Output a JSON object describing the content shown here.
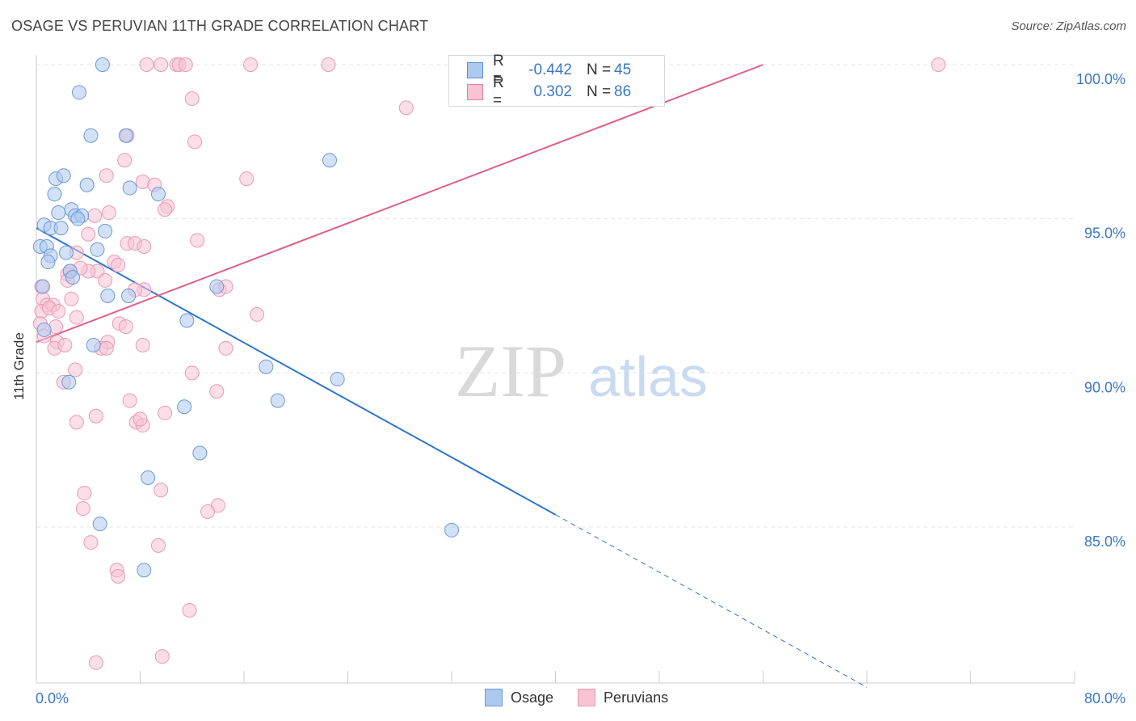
{
  "title": "OSAGE VS PERUVIAN 11TH GRADE CORRELATION CHART",
  "source": "Source: ZipAtlas.com",
  "watermark": {
    "zip": "ZIP",
    "atlas": "atlas"
  },
  "legend": {
    "rows": [
      {
        "r_label": "R =",
        "r_value": "-0.442",
        "n_label": "N =",
        "n_value": "45",
        "fill": "#aec9f0",
        "stroke": "#5b8fd6"
      },
      {
        "r_label": "R =",
        "r_value": "0.302",
        "n_label": "N =",
        "n_value": "86",
        "fill": "#f8c3d3",
        "stroke": "#e57fa0"
      }
    ]
  },
  "bottom_legend": {
    "osage": "Osage",
    "peruvians": "Peruvians"
  },
  "chart_data": {
    "type": "scatter",
    "title": "OSAGE VS PERUVIAN 11TH GRADE CORRELATION CHART",
    "xlabel": "",
    "ylabel": "11th Grade",
    "xlim": [
      0,
      80
    ],
    "ylim": [
      80.0,
      100.5
    ],
    "x_tick_labels": [
      "0.0%",
      "80.0%"
    ],
    "y_tick_labels": [
      "85.0%",
      "90.0%",
      "95.0%",
      "100.0%"
    ],
    "y_ticks": [
      85,
      90,
      95,
      100
    ],
    "grid": true,
    "legend_position": "top-center",
    "colors": {
      "osage_fill": "#aec9f0",
      "osage_stroke": "#6a9ad8",
      "osage_line": "#2f74d0",
      "peru_fill": "#f8c3d3",
      "peru_stroke": "#e89ab4",
      "peru_line": "#e0608a",
      "axis_label": "#3a78c3"
    },
    "series": [
      {
        "name": "Osage",
        "trend": {
          "x0": 0.0,
          "y0": 94.7,
          "x1": 40.0,
          "y1": 85.4,
          "dash_x1": 64.0,
          "dash_y1": 79.8
        },
        "points": [
          [
            5.1,
            100.0
          ],
          [
            3.3,
            99.1
          ],
          [
            4.2,
            97.7
          ],
          [
            6.9,
            97.7
          ],
          [
            1.5,
            96.3
          ],
          [
            2.1,
            96.4
          ],
          [
            3.9,
            96.1
          ],
          [
            7.2,
            96.0
          ],
          [
            9.4,
            95.8
          ],
          [
            1.4,
            95.8
          ],
          [
            2.7,
            95.3
          ],
          [
            3.0,
            95.1
          ],
          [
            3.5,
            95.1
          ],
          [
            3.2,
            95.0
          ],
          [
            0.6,
            94.8
          ],
          [
            1.1,
            94.7
          ],
          [
            1.9,
            94.7
          ],
          [
            5.3,
            94.6
          ],
          [
            0.3,
            94.1
          ],
          [
            0.8,
            94.1
          ],
          [
            1.1,
            93.8
          ],
          [
            2.3,
            93.9
          ],
          [
            4.7,
            94.0
          ],
          [
            0.9,
            93.6
          ],
          [
            2.6,
            93.3
          ],
          [
            2.8,
            93.1
          ],
          [
            0.5,
            92.8
          ],
          [
            5.5,
            92.5
          ],
          [
            7.1,
            92.5
          ],
          [
            13.9,
            92.8
          ],
          [
            11.6,
            91.7
          ],
          [
            0.6,
            91.4
          ],
          [
            4.4,
            90.9
          ],
          [
            17.7,
            90.2
          ],
          [
            23.2,
            89.8
          ],
          [
            2.5,
            89.7
          ],
          [
            11.4,
            88.9
          ],
          [
            18.6,
            89.1
          ],
          [
            12.6,
            87.4
          ],
          [
            8.6,
            86.6
          ],
          [
            4.9,
            85.1
          ],
          [
            32.0,
            84.9
          ],
          [
            8.3,
            83.6
          ],
          [
            22.6,
            96.9
          ],
          [
            1.7,
            95.2
          ]
        ]
      },
      {
        "name": "Peruvians",
        "trend": {
          "x0": 0.0,
          "y0": 91.0,
          "x1": 56.0,
          "y1": 100.0
        },
        "points": [
          [
            8.5,
            100.0
          ],
          [
            9.6,
            100.0
          ],
          [
            10.8,
            100.0
          ],
          [
            11.0,
            100.0
          ],
          [
            11.5,
            100.0
          ],
          [
            16.5,
            100.0
          ],
          [
            22.5,
            100.0
          ],
          [
            69.5,
            100.0
          ],
          [
            12.0,
            98.9
          ],
          [
            28.5,
            98.6
          ],
          [
            7.0,
            97.7
          ],
          [
            12.2,
            97.5
          ],
          [
            6.8,
            96.9
          ],
          [
            5.4,
            96.4
          ],
          [
            16.2,
            96.3
          ],
          [
            8.2,
            96.2
          ],
          [
            9.1,
            96.1
          ],
          [
            10.1,
            95.4
          ],
          [
            9.9,
            95.3
          ],
          [
            5.6,
            95.2
          ],
          [
            4.5,
            95.1
          ],
          [
            4.0,
            94.5
          ],
          [
            7.0,
            94.2
          ],
          [
            7.6,
            94.2
          ],
          [
            12.4,
            94.3
          ],
          [
            8.3,
            94.1
          ],
          [
            3.1,
            93.9
          ],
          [
            6.0,
            93.6
          ],
          [
            6.3,
            93.5
          ],
          [
            4.7,
            93.3
          ],
          [
            4.0,
            93.3
          ],
          [
            2.6,
            93.3
          ],
          [
            2.4,
            93.2
          ],
          [
            5.3,
            93.0
          ],
          [
            2.4,
            93.0
          ],
          [
            0.4,
            92.8
          ],
          [
            8.3,
            92.7
          ],
          [
            14.1,
            92.7
          ],
          [
            7.6,
            92.7
          ],
          [
            2.7,
            92.4
          ],
          [
            0.5,
            92.4
          ],
          [
            0.8,
            92.2
          ],
          [
            1.3,
            92.2
          ],
          [
            0.4,
            92.0
          ],
          [
            1.0,
            92.1
          ],
          [
            1.7,
            92.0
          ],
          [
            17.0,
            91.9
          ],
          [
            3.1,
            91.8
          ],
          [
            0.3,
            91.6
          ],
          [
            6.4,
            91.6
          ],
          [
            6.9,
            91.5
          ],
          [
            1.5,
            91.5
          ],
          [
            0.6,
            91.2
          ],
          [
            1.6,
            91.0
          ],
          [
            5.5,
            91.0
          ],
          [
            5.0,
            90.8
          ],
          [
            5.4,
            90.8
          ],
          [
            8.2,
            90.9
          ],
          [
            14.6,
            90.8
          ],
          [
            1.4,
            90.8
          ],
          [
            3.0,
            90.1
          ],
          [
            2.1,
            89.7
          ],
          [
            13.9,
            89.4
          ],
          [
            7.2,
            89.1
          ],
          [
            9.9,
            88.7
          ],
          [
            4.6,
            88.6
          ],
          [
            3.1,
            88.4
          ],
          [
            7.7,
            88.4
          ],
          [
            8.2,
            88.3
          ],
          [
            8.0,
            88.5
          ],
          [
            3.7,
            86.1
          ],
          [
            9.6,
            86.2
          ],
          [
            14.0,
            85.7
          ],
          [
            13.2,
            85.5
          ],
          [
            3.6,
            85.6
          ],
          [
            4.2,
            84.5
          ],
          [
            9.4,
            84.4
          ],
          [
            6.2,
            83.6
          ],
          [
            6.3,
            83.4
          ],
          [
            11.8,
            82.3
          ],
          [
            9.7,
            80.8
          ],
          [
            4.6,
            80.6
          ],
          [
            14.6,
            92.8
          ],
          [
            12.0,
            90.0
          ],
          [
            2.2,
            90.9
          ],
          [
            3.4,
            93.4
          ]
        ]
      }
    ]
  }
}
